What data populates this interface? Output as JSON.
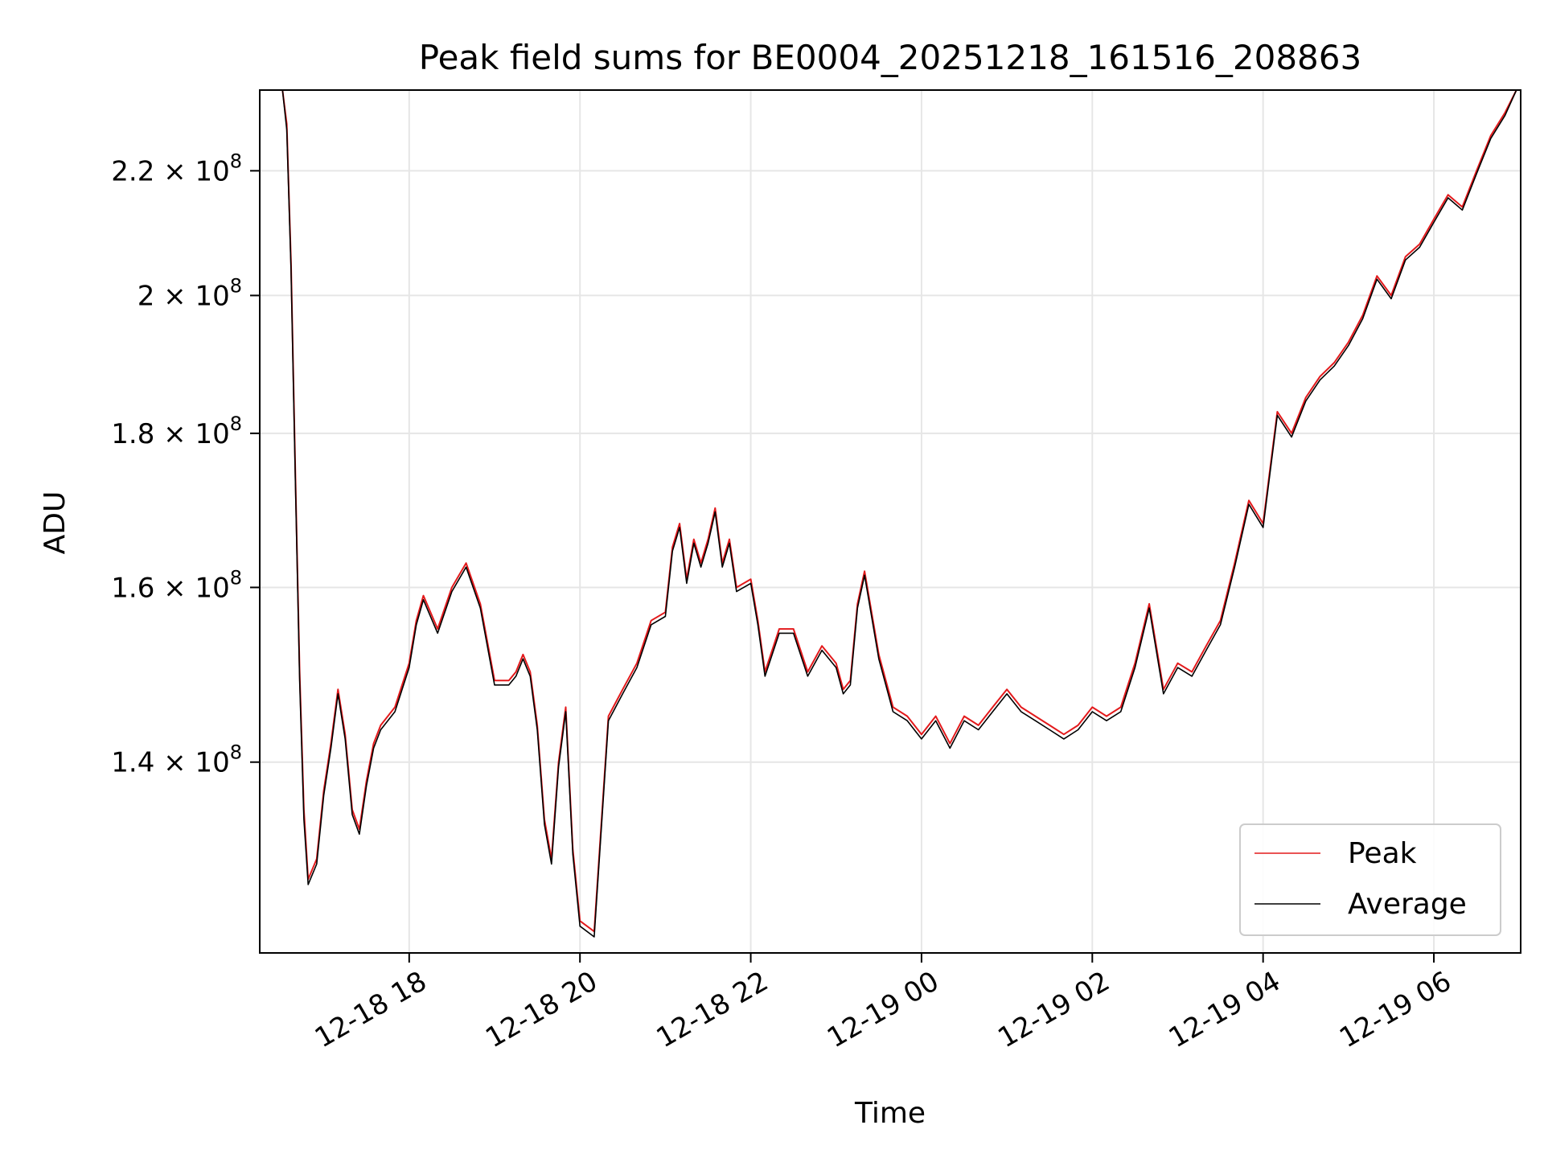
{
  "chart_data": {
    "type": "line",
    "title": "Peak field sums for BE0004_20251218_161516_208863",
    "xlabel": "Time",
    "ylabel": "ADU",
    "y_scale": "log",
    "ylim": [
      121000000,
      234000000
    ],
    "xlim": [
      "2025-12-18T16:15",
      "2025-12-19T07:01"
    ],
    "grid": true,
    "legend_position": "lower-right",
    "x_ticks": [
      {
        "label": "12-18 18",
        "value": "2025-12-18T18:00"
      },
      {
        "label": "12-18 20",
        "value": "2025-12-18T20:00"
      },
      {
        "label": "12-18 22",
        "value": "2025-12-18T22:00"
      },
      {
        "label": "12-19 00",
        "value": "2025-12-19T00:00"
      },
      {
        "label": "12-19 02",
        "value": "2025-12-19T02:00"
      },
      {
        "label": "12-19 04",
        "value": "2025-12-19T04:00"
      },
      {
        "label": "12-19 06",
        "value": "2025-12-19T06:00"
      }
    ],
    "y_ticks": [
      {
        "mantissa": "1.4",
        "exponent": "8",
        "value": 140000000
      },
      {
        "mantissa": "1.6",
        "exponent": "8",
        "value": 160000000
      },
      {
        "mantissa": "1.8",
        "exponent": "8",
        "value": 180000000
      },
      {
        "mantissa": "2",
        "exponent": "8",
        "value": 200000000
      },
      {
        "mantissa": "2.2",
        "exponent": "8",
        "value": 220000000
      }
    ],
    "series": [
      {
        "name": "Peak",
        "color": "#e31a1c",
        "x": [
          "2025-12-18T16:31",
          "2025-12-18T16:34",
          "2025-12-18T16:37",
          "2025-12-18T16:40",
          "2025-12-18T16:43",
          "2025-12-18T16:46",
          "2025-12-18T16:49",
          "2025-12-18T16:52",
          "2025-12-18T16:55",
          "2025-12-18T17:00",
          "2025-12-18T17:05",
          "2025-12-18T17:10",
          "2025-12-18T17:15",
          "2025-12-18T17:20",
          "2025-12-18T17:25",
          "2025-12-18T17:30",
          "2025-12-18T17:35",
          "2025-12-18T17:40",
          "2025-12-18T17:50",
          "2025-12-18T18:00",
          "2025-12-18T18:05",
          "2025-12-18T18:10",
          "2025-12-18T18:20",
          "2025-12-18T18:30",
          "2025-12-18T18:40",
          "2025-12-18T18:50",
          "2025-12-18T19:00",
          "2025-12-18T19:10",
          "2025-12-18T19:15",
          "2025-12-18T19:20",
          "2025-12-18T19:25",
          "2025-12-18T19:30",
          "2025-12-18T19:35",
          "2025-12-18T19:40",
          "2025-12-18T19:45",
          "2025-12-18T19:50",
          "2025-12-18T19:55",
          "2025-12-18T20:00",
          "2025-12-18T20:10",
          "2025-12-18T20:20",
          "2025-12-18T20:30",
          "2025-12-18T20:40",
          "2025-12-18T20:50",
          "2025-12-18T21:00",
          "2025-12-18T21:05",
          "2025-12-18T21:10",
          "2025-12-18T21:15",
          "2025-12-18T21:20",
          "2025-12-18T21:25",
          "2025-12-18T21:30",
          "2025-12-18T21:35",
          "2025-12-18T21:40",
          "2025-12-18T21:45",
          "2025-12-18T21:50",
          "2025-12-18T22:00",
          "2025-12-18T22:05",
          "2025-12-18T22:10",
          "2025-12-18T22:20",
          "2025-12-18T22:30",
          "2025-12-18T22:40",
          "2025-12-18T22:50",
          "2025-12-18T23:00",
          "2025-12-18T23:05",
          "2025-12-18T23:10",
          "2025-12-18T23:15",
          "2025-12-18T23:20",
          "2025-12-18T23:30",
          "2025-12-18T23:40",
          "2025-12-18T23:50",
          "2025-12-19T00:00",
          "2025-12-19T00:10",
          "2025-12-19T00:20",
          "2025-12-19T00:30",
          "2025-12-19T00:40",
          "2025-12-19T00:50",
          "2025-12-19T01:00",
          "2025-12-19T01:10",
          "2025-12-19T01:20",
          "2025-12-19T01:30",
          "2025-12-19T01:40",
          "2025-12-19T01:50",
          "2025-12-19T02:00",
          "2025-12-19T02:10",
          "2025-12-19T02:20",
          "2025-12-19T02:30",
          "2025-12-19T02:40",
          "2025-12-19T02:50",
          "2025-12-19T03:00",
          "2025-12-19T03:10",
          "2025-12-19T03:20",
          "2025-12-19T03:30",
          "2025-12-19T03:40",
          "2025-12-19T03:50",
          "2025-12-19T04:00",
          "2025-12-19T04:10",
          "2025-12-19T04:20",
          "2025-12-19T04:30",
          "2025-12-19T04:40",
          "2025-12-19T04:50",
          "2025-12-19T05:00",
          "2025-12-19T05:10",
          "2025-12-19T05:20",
          "2025-12-19T05:30",
          "2025-12-19T05:40",
          "2025-12-19T05:50",
          "2025-12-19T06:00",
          "2025-12-19T06:10",
          "2025-12-19T06:20",
          "2025-12-19T06:30",
          "2025-12-19T06:40",
          "2025-12-19T06:50",
          "2025-12-19T06:58"
        ],
        "y": [
          234000000,
          228000000,
          205000000,
          175000000,
          150000000,
          135000000,
          128000000,
          129000000,
          130000000,
          137000000,
          142000000,
          148000000,
          143000000,
          135000000,
          133000000,
          138000000,
          142000000,
          144000000,
          146000000,
          151000000,
          156000000,
          159000000,
          155000000,
          160000000,
          163000000,
          158000000,
          149000000,
          149000000,
          150000000,
          152000000,
          150000000,
          144000000,
          134000000,
          130000000,
          140000000,
          146000000,
          131000000,
          124000000,
          123000000,
          145000000,
          148000000,
          151000000,
          156000000,
          157000000,
          165000000,
          168000000,
          161000000,
          166000000,
          163000000,
          166000000,
          170000000,
          163000000,
          166000000,
          160000000,
          161000000,
          156000000,
          150000000,
          155000000,
          155000000,
          150000000,
          153000000,
          151000000,
          148000000,
          149000000,
          158000000,
          162000000,
          152000000,
          146000000,
          145000000,
          143000000,
          145000000,
          142000000,
          145000000,
          144000000,
          146000000,
          148000000,
          146000000,
          145000000,
          144000000,
          143000000,
          144000000,
          146000000,
          145000000,
          146000000,
          151000000,
          158000000,
          148000000,
          151000000,
          150000000,
          153000000,
          156000000,
          163000000,
          171000000,
          168000000,
          183000000,
          180000000,
          185000000,
          188000000,
          190000000,
          193000000,
          197000000,
          203000000,
          200000000,
          206000000,
          208000000,
          212000000,
          216000000,
          214000000,
          220000000,
          226000000,
          230000000,
          234000000
        ]
      },
      {
        "name": "Average",
        "color": "#000000",
        "x": [
          "2025-12-18T16:31",
          "2025-12-18T16:34",
          "2025-12-18T16:37",
          "2025-12-18T16:40",
          "2025-12-18T16:43",
          "2025-12-18T16:46",
          "2025-12-18T16:49",
          "2025-12-18T16:52",
          "2025-12-18T16:55",
          "2025-12-18T17:00",
          "2025-12-18T17:05",
          "2025-12-18T17:10",
          "2025-12-18T17:15",
          "2025-12-18T17:20",
          "2025-12-18T17:25",
          "2025-12-18T17:30",
          "2025-12-18T17:35",
          "2025-12-18T17:40",
          "2025-12-18T17:50",
          "2025-12-18T18:00",
          "2025-12-18T18:05",
          "2025-12-18T18:10",
          "2025-12-18T18:20",
          "2025-12-18T18:30",
          "2025-12-18T18:40",
          "2025-12-18T18:50",
          "2025-12-18T19:00",
          "2025-12-18T19:10",
          "2025-12-18T19:15",
          "2025-12-18T19:20",
          "2025-12-18T19:25",
          "2025-12-18T19:30",
          "2025-12-18T19:35",
          "2025-12-18T19:40",
          "2025-12-18T19:45",
          "2025-12-18T19:50",
          "2025-12-18T19:55",
          "2025-12-18T20:00",
          "2025-12-18T20:10",
          "2025-12-18T20:20",
          "2025-12-18T20:30",
          "2025-12-18T20:40",
          "2025-12-18T20:50",
          "2025-12-18T21:00",
          "2025-12-18T21:05",
          "2025-12-18T21:10",
          "2025-12-18T21:15",
          "2025-12-18T21:20",
          "2025-12-18T21:25",
          "2025-12-18T21:30",
          "2025-12-18T21:35",
          "2025-12-18T21:40",
          "2025-12-18T21:45",
          "2025-12-18T21:50",
          "2025-12-18T22:00",
          "2025-12-18T22:05",
          "2025-12-18T22:10",
          "2025-12-18T22:20",
          "2025-12-18T22:30",
          "2025-12-18T22:40",
          "2025-12-18T22:50",
          "2025-12-18T23:00",
          "2025-12-18T23:05",
          "2025-12-18T23:10",
          "2025-12-18T23:15",
          "2025-12-18T23:20",
          "2025-12-18T23:30",
          "2025-12-18T23:40",
          "2025-12-18T23:50",
          "2025-12-19T00:00",
          "2025-12-19T00:10",
          "2025-12-19T00:20",
          "2025-12-19T00:30",
          "2025-12-19T00:40",
          "2025-12-19T00:50",
          "2025-12-19T01:00",
          "2025-12-19T01:10",
          "2025-12-19T01:20",
          "2025-12-19T01:30",
          "2025-12-19T01:40",
          "2025-12-19T01:50",
          "2025-12-19T02:00",
          "2025-12-19T02:10",
          "2025-12-19T02:20",
          "2025-12-19T02:30",
          "2025-12-19T02:40",
          "2025-12-19T02:50",
          "2025-12-19T03:00",
          "2025-12-19T03:10",
          "2025-12-19T03:20",
          "2025-12-19T03:30",
          "2025-12-19T03:40",
          "2025-12-19T03:50",
          "2025-12-19T04:00",
          "2025-12-19T04:10",
          "2025-12-19T04:20",
          "2025-12-19T04:30",
          "2025-12-19T04:40",
          "2025-12-19T04:50",
          "2025-12-19T05:00",
          "2025-12-19T05:10",
          "2025-12-19T05:20",
          "2025-12-19T05:30",
          "2025-12-19T05:40",
          "2025-12-19T05:50",
          "2025-12-19T06:00",
          "2025-12-19T06:10",
          "2025-12-19T06:20",
          "2025-12-19T06:30",
          "2025-12-19T06:40",
          "2025-12-19T06:50",
          "2025-12-19T06:58"
        ],
        "y": [
          234000000,
          227000000,
          204000000,
          174000000,
          149000000,
          134000000,
          127500000,
          128500000,
          129500000,
          136500000,
          141500000,
          147500000,
          142500000,
          134500000,
          132500000,
          137500000,
          141500000,
          143500000,
          145500000,
          150500000,
          155500000,
          158500000,
          154500000,
          159500000,
          162500000,
          157500000,
          148500000,
          148500000,
          149500000,
          151500000,
          149500000,
          143500000,
          133500000,
          129500000,
          139500000,
          145500000,
          130500000,
          123500000,
          122500000,
          144500000,
          147500000,
          150500000,
          155500000,
          156500000,
          164500000,
          167500000,
          160500000,
          165500000,
          162500000,
          165500000,
          169500000,
          162500000,
          165500000,
          159500000,
          160500000,
          155500000,
          149500000,
          154500000,
          154500000,
          149500000,
          152500000,
          150500000,
          147500000,
          148500000,
          157500000,
          161500000,
          151500000,
          145500000,
          144500000,
          142500000,
          144500000,
          141500000,
          144500000,
          143500000,
          145500000,
          147500000,
          145500000,
          144500000,
          143500000,
          142500000,
          143500000,
          145500000,
          144500000,
          145500000,
          150500000,
          157500000,
          147500000,
          150500000,
          149500000,
          152500000,
          155500000,
          162500000,
          170500000,
          167500000,
          182500000,
          179500000,
          184500000,
          187500000,
          189500000,
          192500000,
          196500000,
          202500000,
          199500000,
          205500000,
          207500000,
          211500000,
          215500000,
          213500000,
          219500000,
          225500000,
          229500000,
          234000000
        ]
      }
    ]
  }
}
